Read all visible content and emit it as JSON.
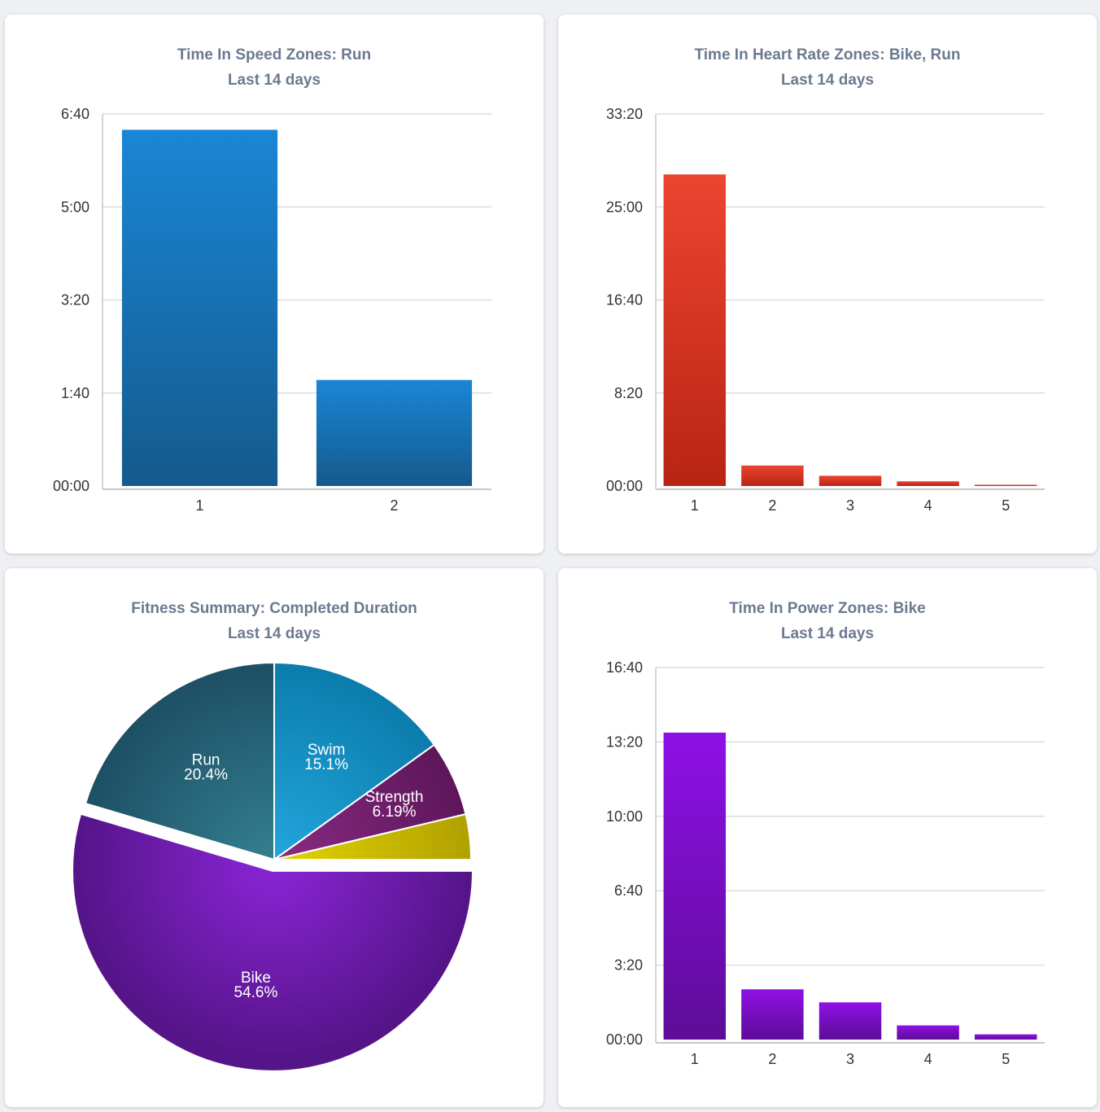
{
  "colors": {
    "speed_top": "#1a86d6",
    "speed_bottom": "#145a8c",
    "hr_top": "#ec4530",
    "hr_bottom": "#b82414",
    "power_top": "#8f10e6",
    "power_bottom": "#5d0c98",
    "title": "#6b7a90",
    "grid": "#dddddd"
  },
  "chart_data": [
    {
      "id": "speed",
      "type": "bar",
      "title": "Time In Speed Zones: Run",
      "subtitle": "Last 14 days",
      "categories": [
        "1",
        "2"
      ],
      "values": [
        383,
        114
      ],
      "value_unit": "seconds",
      "ylim": [
        0,
        400
      ],
      "yticks": [
        0,
        100,
        200,
        300,
        400
      ],
      "ytick_labels": [
        "00:00",
        "1:40",
        "3:20",
        "5:00",
        "6:40"
      ],
      "grid": true
    },
    {
      "id": "hr",
      "type": "bar",
      "title": "Time In Heart Rate Zones: Bike, Run",
      "subtitle": "Last 14 days",
      "categories": [
        "1",
        "2",
        "3",
        "4",
        "5"
      ],
      "values": [
        1675,
        110,
        55,
        25,
        6
      ],
      "value_unit": "seconds",
      "ylim": [
        0,
        2000
      ],
      "yticks": [
        0,
        500,
        1000,
        1500,
        2000
      ],
      "ytick_labels": [
        "00:00",
        "8:20",
        "16:40",
        "25:00",
        "33:20"
      ],
      "grid": true
    },
    {
      "id": "fitness",
      "type": "pie",
      "title": "Fitness Summary: Completed Duration",
      "subtitle": "Last 14 days",
      "slices": [
        {
          "label": "Swim",
          "pct_label": "15.1%",
          "value": 15.1,
          "color_in": "#22a6dc",
          "color_out": "#0b7cac"
        },
        {
          "label": "Strength",
          "pct_label": "6.19%",
          "value": 6.19,
          "color_in": "#8a2a84",
          "color_out": "#5c1658"
        },
        {
          "label": "",
          "pct_label": "",
          "value": 3.71,
          "color_in": "#e3d400",
          "color_out": "#b0a000"
        },
        {
          "label": "Bike",
          "pct_label": "54.6%",
          "value": 54.6,
          "color_in": "#8b25d8",
          "color_out": "#551488"
        },
        {
          "label": "Run",
          "pct_label": "20.4%",
          "value": 20.4,
          "color_in": "#33808f",
          "color_out": "#1d4e64"
        }
      ]
    },
    {
      "id": "power",
      "type": "bar",
      "title": "Time In Power Zones: Bike",
      "subtitle": "Last 14 days",
      "categories": [
        "1",
        "2",
        "3",
        "4",
        "5"
      ],
      "values": [
        825,
        135,
        100,
        38,
        14
      ],
      "value_unit": "seconds",
      "ylim": [
        0,
        1000
      ],
      "yticks": [
        0,
        200,
        400,
        600,
        800,
        1000
      ],
      "ytick_labels": [
        "00:00",
        "3:20",
        "6:40",
        "10:00",
        "13:20",
        "16:40"
      ],
      "grid": true
    }
  ]
}
